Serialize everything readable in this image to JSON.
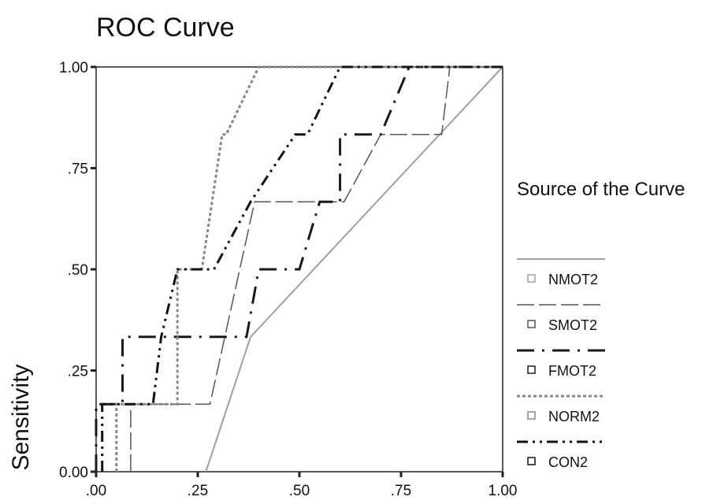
{
  "chart_data": {
    "type": "line",
    "title": "ROC Curve",
    "xlabel": "",
    "ylabel": "Sensitivity",
    "xlim": [
      0,
      1
    ],
    "ylim": [
      0,
      1
    ],
    "x_ticks": [
      ".00",
      ".25",
      ".50",
      ".75",
      "1.00"
    ],
    "y_ticks": [
      "0.00",
      ".25",
      ".50",
      ".75",
      "1.00"
    ],
    "legend_title": "Source of the Curve",
    "legend_position": "right",
    "series": [
      {
        "name": "NMOT2",
        "color": "#a0a0a0",
        "dash": "solid",
        "x": [
          0.27,
          0.38,
          1.0
        ],
        "y": [
          0.0,
          0.333,
          1.0
        ]
      },
      {
        "name": "SMOT2",
        "color": "#555555",
        "dash": "long-dash",
        "x": [
          0.085,
          0.085,
          0.28,
          0.39,
          0.61,
          0.7,
          0.85,
          0.87,
          1.0
        ],
        "y": [
          0.0,
          0.167,
          0.167,
          0.667,
          0.667,
          0.833,
          0.833,
          1.0,
          1.0
        ]
      },
      {
        "name": "FMOT2",
        "color": "#1a1a1a",
        "dash": "dash-dot",
        "x": [
          0.0,
          0.0,
          0.065,
          0.065,
          0.37,
          0.4,
          0.5,
          0.55,
          0.6,
          0.6,
          0.7,
          0.77,
          1.0
        ],
        "y": [
          0.0,
          0.167,
          0.167,
          0.333,
          0.333,
          0.5,
          0.5,
          0.667,
          0.667,
          0.833,
          0.833,
          1.0,
          1.0
        ]
      },
      {
        "name": "NORM2",
        "color": "#888888",
        "dash": "dotted",
        "x": [
          0.05,
          0.05,
          0.2,
          0.2,
          0.26,
          0.31,
          0.32,
          0.4,
          1.0
        ],
        "y": [
          0.0,
          0.167,
          0.167,
          0.5,
          0.5,
          0.833,
          0.833,
          1.0,
          1.0
        ]
      },
      {
        "name": "CON2",
        "color": "#111111",
        "dash": "dash-dot-dot",
        "x": [
          0.015,
          0.015,
          0.14,
          0.16,
          0.2,
          0.29,
          0.38,
          0.38,
          0.49,
          0.52,
          0.6,
          0.68,
          1.0
        ],
        "y": [
          0.0,
          0.167,
          0.167,
          0.333,
          0.5,
          0.5,
          0.667,
          0.667,
          0.833,
          0.833,
          1.0,
          1.0,
          1.0
        ]
      }
    ]
  }
}
